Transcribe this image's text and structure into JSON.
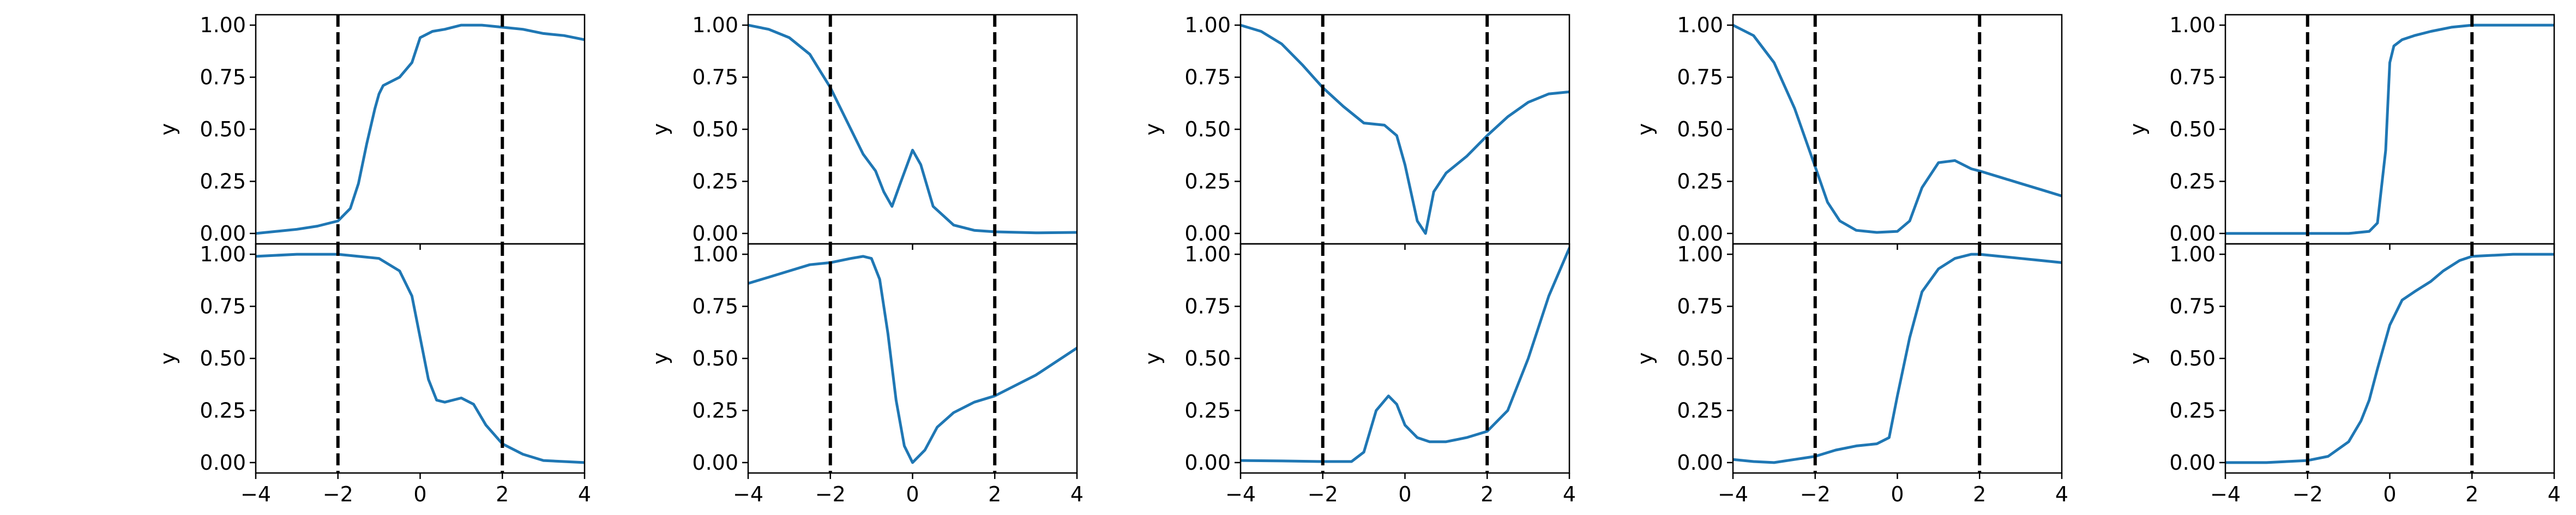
{
  "figure": {
    "line_color": "#1f77b4",
    "marker_color": "#000000",
    "marker_style": "dashed vertical lines"
  },
  "chart_data": [
    {
      "type": "line",
      "position": "row-1 col-1",
      "ylabel": "y",
      "xlim": [
        -4,
        4
      ],
      "ylim": [
        -0.05,
        1.05
      ],
      "xticks": [
        -4,
        -2,
        0,
        2,
        4
      ],
      "yticks": [
        0.0,
        0.25,
        0.5,
        0.75,
        1.0
      ],
      "show_x_ticklabels": false,
      "vlines": [
        -2,
        2
      ],
      "x": [
        -4,
        -3,
        -2.5,
        -2,
        -1.7,
        -1.5,
        -1.3,
        -1.1,
        -1,
        -0.9,
        -0.5,
        -0.2,
        0,
        0.3,
        0.6,
        1,
        1.5,
        2,
        2.5,
        3,
        3.5,
        4
      ],
      "y": [
        0.0,
        0.02,
        0.035,
        0.06,
        0.12,
        0.24,
        0.43,
        0.6,
        0.67,
        0.71,
        0.75,
        0.82,
        0.94,
        0.97,
        0.98,
        1.0,
        1.0,
        0.99,
        0.98,
        0.96,
        0.95,
        0.93
      ]
    },
    {
      "type": "line",
      "position": "row-1 col-2",
      "ylabel": "y",
      "xlim": [
        -4,
        4
      ],
      "ylim": [
        -0.05,
        1.05
      ],
      "xticks": [
        -4,
        -2,
        0,
        2,
        4
      ],
      "yticks": [
        0.0,
        0.25,
        0.5,
        0.75,
        1.0
      ],
      "show_x_ticklabels": false,
      "vlines": [
        -2,
        2
      ],
      "x": [
        -4,
        -3.5,
        -3,
        -2.5,
        -2,
        -1.5,
        -1.2,
        -0.9,
        -0.7,
        -0.5,
        -0.3,
        0,
        0.2,
        0.5,
        1,
        1.5,
        2,
        3,
        4
      ],
      "y": [
        1.0,
        0.98,
        0.94,
        0.86,
        0.7,
        0.5,
        0.38,
        0.3,
        0.2,
        0.13,
        0.24,
        0.4,
        0.33,
        0.13,
        0.04,
        0.015,
        0.008,
        0.003,
        0.005
      ]
    },
    {
      "type": "line",
      "position": "row-1 col-3",
      "ylabel": "y",
      "xlim": [
        -4,
        4
      ],
      "ylim": [
        -0.05,
        1.05
      ],
      "xticks": [
        -4,
        -2,
        0,
        2,
        4
      ],
      "yticks": [
        0.0,
        0.25,
        0.5,
        0.75,
        1.0
      ],
      "show_x_ticklabels": false,
      "vlines": [
        -2,
        2
      ],
      "x": [
        -4,
        -3.5,
        -3,
        -2.5,
        -2,
        -1.5,
        -1,
        -0.5,
        -0.2,
        0,
        0.3,
        0.5,
        0.7,
        1,
        1.5,
        2,
        2.5,
        3,
        3.5,
        4
      ],
      "y": [
        1.0,
        0.97,
        0.91,
        0.81,
        0.7,
        0.61,
        0.53,
        0.52,
        0.47,
        0.33,
        0.06,
        0.0,
        0.2,
        0.29,
        0.37,
        0.47,
        0.56,
        0.63,
        0.67,
        0.68
      ]
    },
    {
      "type": "line",
      "position": "row-1 col-4",
      "ylabel": "y",
      "xlim": [
        -4,
        4
      ],
      "ylim": [
        -0.05,
        1.05
      ],
      "xticks": [
        -4,
        -2,
        0,
        2,
        4
      ],
      "yticks": [
        0.0,
        0.25,
        0.5,
        0.75,
        1.0
      ],
      "show_x_ticklabels": false,
      "vlines": [
        -2,
        2
      ],
      "x": [
        -4,
        -3.5,
        -3,
        -2.5,
        -2,
        -1.7,
        -1.4,
        -1,
        -0.5,
        0,
        0.3,
        0.6,
        1,
        1.4,
        1.8,
        2,
        2.5,
        3,
        3.5,
        4
      ],
      "y": [
        1.0,
        0.95,
        0.82,
        0.6,
        0.32,
        0.15,
        0.06,
        0.015,
        0.005,
        0.01,
        0.06,
        0.22,
        0.34,
        0.35,
        0.31,
        0.3,
        0.27,
        0.24,
        0.21,
        0.18
      ]
    },
    {
      "type": "line",
      "position": "row-1 col-5",
      "ylabel": "y",
      "xlim": [
        -4,
        4
      ],
      "ylim": [
        -0.05,
        1.05
      ],
      "xticks": [
        -4,
        -2,
        0,
        2,
        4
      ],
      "yticks": [
        0.0,
        0.25,
        0.5,
        0.75,
        1.0
      ],
      "show_x_ticklabels": false,
      "vlines": [
        -2,
        2
      ],
      "x": [
        -4,
        -2,
        -1,
        -0.5,
        -0.3,
        -0.1,
        0,
        0.1,
        0.3,
        0.6,
        1,
        1.5,
        2,
        3,
        4
      ],
      "y": [
        0.0,
        0.0,
        0.0,
        0.01,
        0.05,
        0.4,
        0.82,
        0.9,
        0.93,
        0.95,
        0.97,
        0.99,
        1.0,
        1.0,
        1.0
      ]
    },
    {
      "type": "line",
      "position": "row-2 col-1",
      "ylabel": "y",
      "xlim": [
        -4,
        4
      ],
      "ylim": [
        -0.05,
        1.05
      ],
      "xticks": [
        -4,
        -2,
        0,
        2,
        4
      ],
      "yticks": [
        0.0,
        0.25,
        0.5,
        0.75,
        1.0
      ],
      "show_x_ticklabels": true,
      "vlines": [
        -2,
        2
      ],
      "x": [
        -4,
        -3,
        -2,
        -1.5,
        -1,
        -0.5,
        -0.2,
        0,
        0.2,
        0.4,
        0.6,
        1,
        1.3,
        1.6,
        2,
        2.5,
        3,
        4
      ],
      "y": [
        0.99,
        1.0,
        1.0,
        0.99,
        0.98,
        0.92,
        0.8,
        0.6,
        0.4,
        0.3,
        0.29,
        0.31,
        0.28,
        0.18,
        0.09,
        0.04,
        0.01,
        0.0
      ]
    },
    {
      "type": "line",
      "position": "row-2 col-2",
      "ylabel": "y",
      "xlim": [
        -4,
        4
      ],
      "ylim": [
        -0.05,
        1.05
      ],
      "xticks": [
        -4,
        -2,
        0,
        2,
        4
      ],
      "yticks": [
        0.0,
        0.25,
        0.5,
        0.75,
        1.0
      ],
      "show_x_ticklabels": true,
      "vlines": [
        -2,
        2
      ],
      "x": [
        -4,
        -3.5,
        -3,
        -2.5,
        -2,
        -1.5,
        -1.2,
        -1,
        -0.8,
        -0.6,
        -0.4,
        -0.2,
        0,
        0.3,
        0.6,
        1,
        1.5,
        2,
        3,
        4
      ],
      "y": [
        0.86,
        0.89,
        0.92,
        0.95,
        0.96,
        0.98,
        0.99,
        0.98,
        0.88,
        0.62,
        0.3,
        0.08,
        0.0,
        0.06,
        0.17,
        0.24,
        0.29,
        0.32,
        0.42,
        0.55
      ]
    },
    {
      "type": "line",
      "position": "row-2 col-3",
      "ylabel": "y",
      "xlim": [
        -4,
        4
      ],
      "ylim": [
        -0.05,
        1.05
      ],
      "xticks": [
        -4,
        -2,
        0,
        2,
        4
      ],
      "yticks": [
        0.0,
        0.25,
        0.5,
        0.75,
        1.0
      ],
      "show_x_ticklabels": true,
      "vlines": [
        -2,
        2
      ],
      "x": [
        -4,
        -3,
        -2,
        -1.3,
        -1,
        -0.7,
        -0.4,
        -0.2,
        0,
        0.3,
        0.6,
        1,
        1.5,
        2,
        2.5,
        3,
        3.5,
        4
      ],
      "y": [
        0.01,
        0.008,
        0.005,
        0.005,
        0.05,
        0.25,
        0.32,
        0.28,
        0.18,
        0.12,
        0.1,
        0.1,
        0.12,
        0.15,
        0.25,
        0.5,
        0.8,
        1.03
      ]
    },
    {
      "type": "line",
      "position": "row-2 col-4",
      "ylabel": "y",
      "xlim": [
        -4,
        4
      ],
      "ylim": [
        -0.05,
        1.05
      ],
      "xticks": [
        -4,
        -2,
        0,
        2,
        4
      ],
      "yticks": [
        0.0,
        0.25,
        0.5,
        0.75,
        1.0
      ],
      "show_x_ticklabels": true,
      "vlines": [
        -2,
        2
      ],
      "x": [
        -4,
        -3.5,
        -3,
        -2.5,
        -2,
        -1.5,
        -1,
        -0.5,
        -0.2,
        0,
        0.3,
        0.6,
        1,
        1.4,
        1.8,
        2,
        2.5,
        3,
        3.5,
        4
      ],
      "y": [
        0.015,
        0.005,
        0.0,
        0.015,
        0.03,
        0.06,
        0.08,
        0.09,
        0.12,
        0.32,
        0.6,
        0.82,
        0.93,
        0.98,
        1.0,
        1.0,
        0.99,
        0.98,
        0.97,
        0.96
      ]
    },
    {
      "type": "line",
      "position": "row-2 col-5",
      "ylabel": "y",
      "xlim": [
        -4,
        4
      ],
      "ylim": [
        -0.05,
        1.05
      ],
      "xticks": [
        -4,
        -2,
        0,
        2,
        4
      ],
      "yticks": [
        0.0,
        0.25,
        0.5,
        0.75,
        1.0
      ],
      "show_x_ticklabels": true,
      "vlines": [
        -2,
        2
      ],
      "x": [
        -4,
        -3,
        -2,
        -1.5,
        -1,
        -0.7,
        -0.5,
        -0.3,
        0,
        0.3,
        0.6,
        1,
        1.3,
        1.7,
        2,
        3,
        4
      ],
      "y": [
        0.0,
        0.0,
        0.01,
        0.03,
        0.1,
        0.2,
        0.3,
        0.45,
        0.66,
        0.78,
        0.82,
        0.87,
        0.92,
        0.97,
        0.99,
        1.0,
        1.0
      ]
    }
  ]
}
